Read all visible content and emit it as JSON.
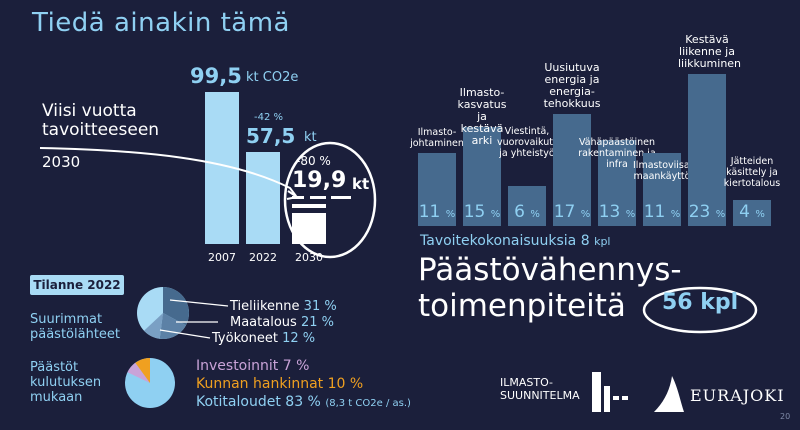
{
  "title": "Tiedä ainakin tämä",
  "left_chart": {
    "bars": [
      {
        "year": "2007",
        "value_label": "99,5",
        "unit": "kt CO2e",
        "value": 99.5
      },
      {
        "year": "2022",
        "value_label": "57,5",
        "unit": "kt",
        "change": "-42 %",
        "value": 57.5
      },
      {
        "year": "2030",
        "value_label": "19,9",
        "unit": "kt",
        "change": "-80 %",
        "value": 19.9
      }
    ],
    "goal_text_line1": "Viisi vuotta",
    "goal_text_line2": "tavoitteeseen",
    "goal_year": "2030"
  },
  "status_2022": {
    "heading": "Tilanne 2022",
    "sources_title_1": "Suurimmat",
    "sources_title_2": "päästölähteet",
    "sources": [
      {
        "name": "Tieliikenne",
        "value": 31,
        "label": "31 %"
      },
      {
        "name": "Maatalous",
        "value": 21,
        "label": "21 %"
      },
      {
        "name": "Työkoneet",
        "value": 12,
        "label": "12 %"
      }
    ],
    "consumption_title_1": "Päästöt",
    "consumption_title_2": "kulutuksen",
    "consumption_title_3": "mukaan",
    "consumption": [
      {
        "name": "Investoinnit",
        "value": 7,
        "label": "7 %",
        "color": "#c9a3d8"
      },
      {
        "name": "Kunnan hankinnat",
        "value": 10,
        "label": "10 %",
        "color": "#f0a020"
      },
      {
        "name": "Kotitaloudet",
        "value": 83,
        "label": "83 %",
        "color": "#8fd0f2",
        "note": "(8,3 t CO2e / as.)"
      }
    ]
  },
  "chart_data": {
    "type": "bar",
    "categories": [
      "Ilmasto-johtaminen",
      "Ilmasto-kasvatus ja kestävä arki",
      "Viestintä, vuorovaikutus ja yhteistyö",
      "Uusiutuva energia ja energia-tehokkuus",
      "Vähäpäästöinen rakentaminen ja infra",
      "Ilmastoviisas maankäyttö",
      "Kestävä liikenne ja liikkuminen",
      "Jätteiden käsittely ja kiertotalous"
    ],
    "values": [
      11,
      15,
      6,
      17,
      13,
      11,
      23,
      4
    ],
    "unit": "%"
  },
  "right_labels": [
    [
      "Ilmasto-",
      "johtaminen"
    ],
    [
      "Ilmasto-",
      "kasvatus ja",
      "kestävä arki"
    ],
    [
      "Viestintä,",
      "vuorovaikutus",
      "ja yhteistyö"
    ],
    [
      "Uusiutuva",
      "energia ja",
      "energia-",
      "tehokkuus"
    ],
    [
      "Vähäpäästöinen",
      "rakentaminen ja infra"
    ],
    [
      "Ilmastoviisas",
      "maankäyttö"
    ],
    [
      "Kestävä",
      "liikenne ja",
      "liikkuminen"
    ],
    [
      "Jätteiden",
      "käsittely ja",
      "kiertotalous"
    ]
  ],
  "total_goals": "Tavoitekokonaisuuksia 8",
  "total_goals_unit": "kpl",
  "big_line1": "Päästövähennys-",
  "big_line2": "toimenpiteitä",
  "big_count": "56 kpl",
  "logo1_line1": "ILMASTO-",
  "logo1_line2": "SUUNNITELMA",
  "logo2": "EURAJOKI",
  "page_number": "20"
}
